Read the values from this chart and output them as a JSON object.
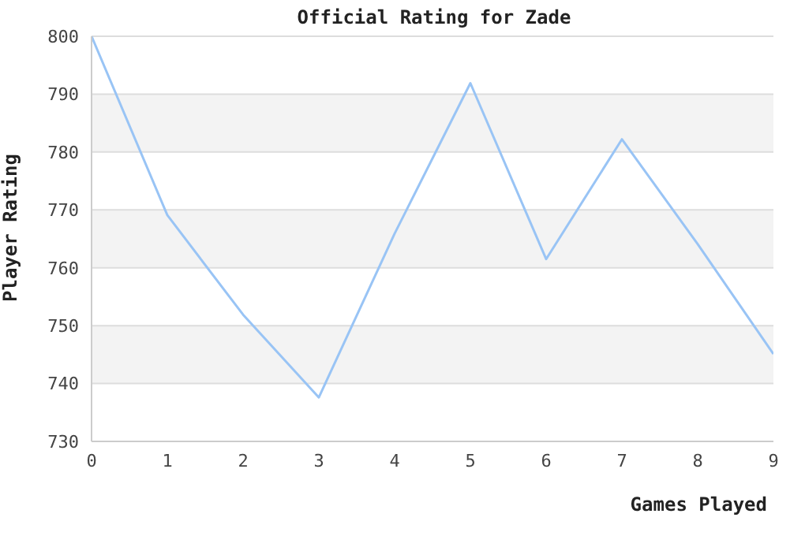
{
  "chart_data": {
    "type": "line",
    "title": "Official Rating for Zade",
    "xlabel": "Games Played",
    "ylabel": "Player Rating",
    "x": [
      0,
      1,
      2,
      3,
      4,
      5,
      6,
      7,
      8,
      9
    ],
    "series": [
      {
        "color": "#99c4f5",
        "values": [
          800,
          769.1,
          751.9,
          737.6,
          765.9,
          791.9,
          761.5,
          782.2,
          764.1,
          745.1
        ]
      }
    ],
    "xlim": [
      0,
      9
    ],
    "xticks": [
      0,
      1,
      2,
      3,
      4,
      5,
      6,
      7,
      8,
      9
    ],
    "ylim": [
      730,
      800
    ],
    "yticks": [
      730,
      740,
      750,
      760,
      770,
      780,
      790,
      800
    ],
    "grid": "y",
    "marker": "none",
    "line_style": "solid"
  }
}
